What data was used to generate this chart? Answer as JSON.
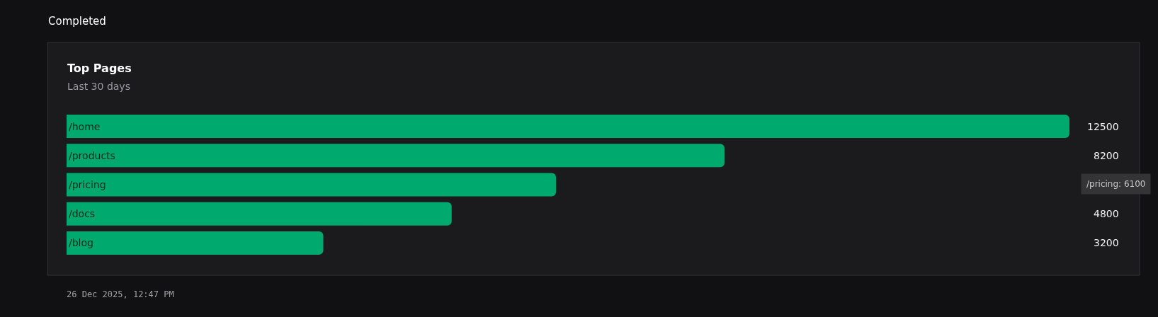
{
  "chart_data": {
    "type": "bar",
    "orientation": "horizontal",
    "title": "Top Pages",
    "subtitle": "Last 30 days",
    "categories": [
      "/home",
      "/products",
      "/pricing",
      "/docs",
      "/blog"
    ],
    "values": [
      12500,
      8200,
      6100,
      4800,
      3200
    ],
    "value_labels": [
      "12500",
      "8200",
      null,
      "4800",
      "3200"
    ],
    "color": "#00a96e",
    "annotations": [
      "Completed",
      "/pricing: 6100",
      "26 Dec 2025, 12:47 PM"
    ]
  }
}
